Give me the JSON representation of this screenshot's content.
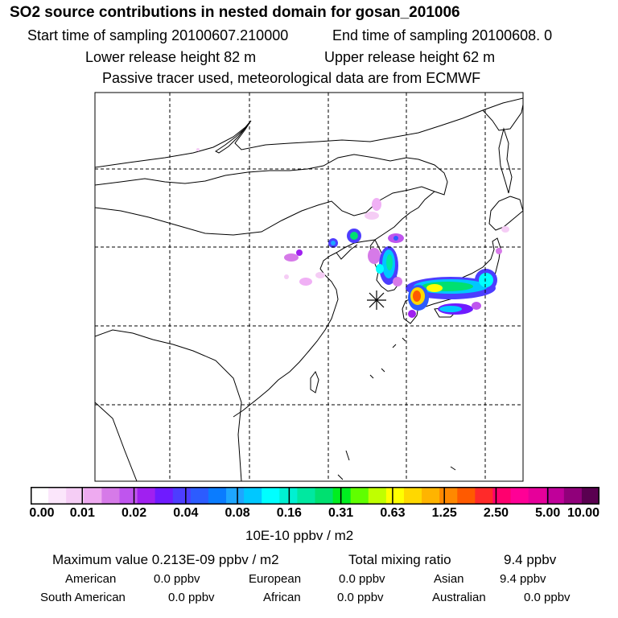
{
  "header": {
    "title": "SO2 source contributions in nested domain for gosan_201006",
    "start_sampling": "Start time of sampling 20100607.210000",
    "end_sampling": "End time of sampling 20100608.     0",
    "lower_release": "Lower release height   82 m",
    "upper_release": "Upper release height   62 m",
    "tracer_note": "Passive tracer used, meteorological data are from ECMWF"
  },
  "colorbar": {
    "units": "10E-10 ppbv / m2",
    "ticks": [
      "0.00",
      "0.01",
      "0.02",
      "0.04",
      "0.08",
      "0.16",
      "0.31",
      "0.63",
      "1.25",
      "2.50",
      "5.00",
      "10.00"
    ],
    "colors": [
      "#ffffff",
      "#fbe6fb",
      "#f5cdf5",
      "#eeaaf0",
      "#d67ae8",
      "#bf55ee",
      "#a020f0",
      "#6f1bff",
      "#4d3dff",
      "#2c5cff",
      "#0a7cff",
      "#1ea6ff",
      "#00c8ff",
      "#00ffff",
      "#00f0d2",
      "#00e8a0",
      "#00e070",
      "#00ee20",
      "#60ff00",
      "#c0ff00",
      "#ffff00",
      "#ffd800",
      "#ffb400",
      "#ff8800",
      "#ff5a00",
      "#ff2a2a",
      "#ff006e",
      "#ff0096",
      "#e6009a",
      "#c0009a",
      "#90007a",
      "#5a0050"
    ]
  },
  "stats": {
    "max_value": "Maximum value  0.213E-09 ppbv / m2",
    "total_label": "Total mixing ratio",
    "total_value": "9.4 ppbv",
    "regions": [
      {
        "name": "American",
        "value": "0.0 ppbv"
      },
      {
        "name": "European",
        "value": "0.0 ppbv"
      },
      {
        "name": "Asian",
        "value": "9.4 ppbv"
      },
      {
        "name": "South American",
        "value": "0.0 ppbv"
      },
      {
        "name": "African",
        "value": "0.0 ppbv"
      },
      {
        "name": "Australian",
        "value": "0.0 ppbv"
      }
    ]
  }
}
